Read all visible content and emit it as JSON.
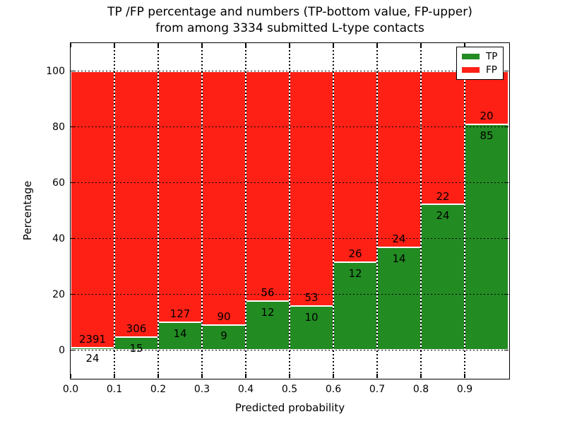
{
  "title": {
    "line1": "TP /FP percentage and numbers (TP-bottom value, FP-upper)",
    "line2": "from among 3334 submitted L-type contacts"
  },
  "axes": {
    "xlabel": "Predicted probability",
    "ylabel": "Percentage"
  },
  "legend": {
    "items": [
      {
        "label": "TP",
        "color": "#228b22"
      },
      {
        "label": "FP",
        "color": "#ff2015"
      }
    ],
    "position": "upper right"
  },
  "chart_data": {
    "type": "bar",
    "stacked": true,
    "title": "TP /FP percentage and numbers (TP-bottom value, FP-upper) from among 3334 submitted L-type contacts",
    "xlabel": "Predicted probability",
    "ylabel": "Percentage",
    "total_contacts": 3334,
    "categories": [
      "0.0-0.1",
      "0.1-0.2",
      "0.2-0.3",
      "0.3-0.4",
      "0.4-0.5",
      "0.5-0.6",
      "0.6-0.7",
      "0.7-0.8",
      "0.8-0.9",
      "0.9-1.0"
    ],
    "bin_left_edges": [
      0.0,
      0.1,
      0.2,
      0.3,
      0.4,
      0.5,
      0.6,
      0.7,
      0.8,
      0.9
    ],
    "bin_width": 0.1,
    "series": [
      {
        "name": "TP",
        "color": "#228b22",
        "counts": [
          24,
          15,
          14,
          9,
          12,
          10,
          12,
          14,
          24,
          85
        ],
        "pct": [
          0.99,
          4.67,
          9.93,
          9.09,
          17.65,
          15.87,
          31.58,
          36.84,
          52.17,
          80.95
        ]
      },
      {
        "name": "FP",
        "color": "#ff2015",
        "counts": [
          2391,
          306,
          127,
          90,
          56,
          53,
          26,
          24,
          22,
          20
        ],
        "pct": [
          99.01,
          95.33,
          90.07,
          90.91,
          82.35,
          84.13,
          68.42,
          63.16,
          47.83,
          19.05
        ]
      }
    ],
    "x_ticks": [
      "0.0",
      "0.1",
      "0.2",
      "0.3",
      "0.4",
      "0.5",
      "0.6",
      "0.7",
      "0.8",
      "0.9"
    ],
    "y_ticks": [
      0,
      20,
      40,
      60,
      80,
      100
    ],
    "xlim": [
      0.0,
      1.0
    ],
    "ylim": [
      -10,
      110
    ],
    "grid": true,
    "grid_style": "dotted-black-over-bars",
    "bar_edge_color": "#ffffff",
    "legend_position": "upper right"
  }
}
